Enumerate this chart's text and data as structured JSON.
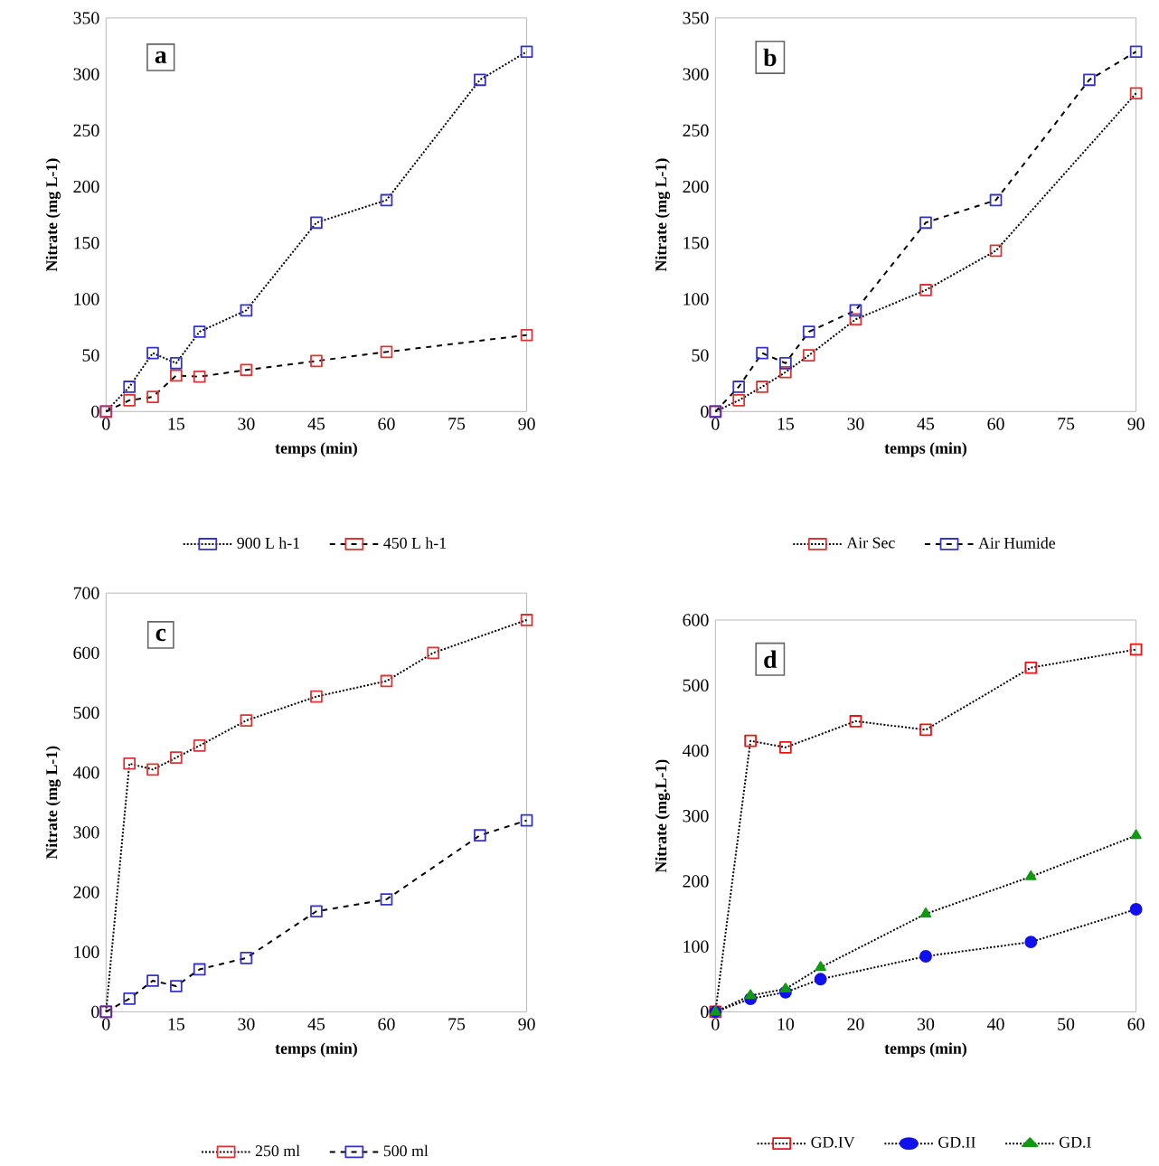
{
  "chart_data": [
    {
      "type": "line",
      "xlabel": "temps (min)",
      "ylabel": "Nitrate  (mg L-1)",
      "annotations": [
        "a"
      ],
      "xlim": [
        0,
        90
      ],
      "ylim": [
        0,
        350
      ],
      "xticks": [
        0,
        15,
        30,
        45,
        60,
        75,
        90
      ],
      "yticks": [
        0,
        50,
        100,
        150,
        200,
        250,
        300,
        350
      ],
      "legend": "bottom",
      "grid": false,
      "series": [
        {
          "name": "900 L h-1",
          "color": "#3333cc",
          "line_style": "dotted",
          "marker": "square",
          "x": [
            0,
            5,
            10,
            15,
            20,
            30,
            45,
            60,
            80,
            90
          ],
          "values": [
            0,
            22,
            52,
            43,
            71,
            90,
            168,
            188,
            295,
            320
          ]
        },
        {
          "name": "450 L h-1",
          "color": "#dd3333",
          "line_style": "dashed",
          "marker": "square",
          "x": [
            0,
            5,
            10,
            15,
            20,
            30,
            45,
            60,
            90
          ],
          "values": [
            0,
            10,
            13,
            32,
            31,
            37,
            45,
            53,
            68
          ]
        }
      ]
    },
    {
      "type": "line",
      "xlabel": "temps (min)",
      "ylabel": "Nitrate (mg L-1)",
      "annotations": [
        "b"
      ],
      "xlim": [
        0,
        90
      ],
      "ylim": [
        0,
        350
      ],
      "xticks": [
        0,
        15,
        30,
        45,
        60,
        75,
        90
      ],
      "yticks": [
        0,
        50,
        100,
        150,
        200,
        250,
        300,
        350
      ],
      "legend": "bottom",
      "grid": false,
      "series": [
        {
          "name": "Air Sec",
          "color": "#dd3333",
          "line_style": "dotted",
          "marker": "square",
          "x": [
            0,
            5,
            10,
            15,
            20,
            30,
            45,
            60,
            90
          ],
          "values": [
            0,
            10,
            22,
            35,
            50,
            82,
            108,
            143,
            283
          ]
        },
        {
          "name": "Air Humide",
          "color": "#3333cc",
          "line_style": "dashed",
          "marker": "square",
          "x": [
            0,
            5,
            10,
            15,
            20,
            30,
            45,
            60,
            80,
            90
          ],
          "values": [
            0,
            22,
            52,
            43,
            71,
            90,
            168,
            188,
            295,
            320
          ]
        }
      ]
    },
    {
      "type": "line",
      "xlabel": "temps (min)",
      "ylabel": "Nitrate (mg L-1)",
      "annotations": [
        "c"
      ],
      "xlim": [
        0,
        90
      ],
      "ylim": [
        0,
        700
      ],
      "xticks": [
        0,
        15,
        30,
        45,
        60,
        75,
        90
      ],
      "yticks": [
        0,
        100,
        200,
        300,
        400,
        500,
        600,
        700
      ],
      "legend": "bottom",
      "grid": false,
      "series": [
        {
          "name": "250 ml",
          "color": "#dd3333",
          "line_style": "dotted",
          "marker": "square",
          "x": [
            0,
            5,
            10,
            15,
            20,
            30,
            45,
            60,
            70,
            90
          ],
          "values": [
            0,
            415,
            405,
            425,
            445,
            487,
            527,
            553,
            600,
            655
          ]
        },
        {
          "name": "500 ml",
          "color": "#3333cc",
          "line_style": "dashed",
          "marker": "square",
          "x": [
            0,
            5,
            10,
            15,
            20,
            30,
            45,
            60,
            80,
            90
          ],
          "values": [
            0,
            22,
            52,
            43,
            71,
            90,
            168,
            188,
            295,
            320
          ]
        }
      ]
    },
    {
      "type": "line",
      "xlabel": "temps (min)",
      "ylabel": "Nitrate   (mg.L-1)",
      "annotations": [
        "d"
      ],
      "xlim": [
        0,
        60
      ],
      "ylim": [
        0,
        600
      ],
      "xticks": [
        0,
        10,
        20,
        30,
        40,
        50,
        60
      ],
      "yticks": [
        0,
        100,
        200,
        300,
        400,
        500,
        600
      ],
      "legend": "bottom",
      "grid": false,
      "series": [
        {
          "name": "GD.IV",
          "color": "#ee1111",
          "line_style": "dotted",
          "marker": "square",
          "x": [
            0,
            5,
            10,
            20,
            30,
            45,
            60
          ],
          "values": [
            0,
            415,
            405,
            445,
            432,
            527,
            555
          ]
        },
        {
          "name": "GD.II",
          "color": "#1111ee",
          "line_style": "dotted",
          "marker": "circle",
          "x": [
            0,
            5,
            10,
            15,
            30,
            45,
            60
          ],
          "values": [
            0,
            20,
            30,
            50,
            85,
            107,
            157
          ]
        },
        {
          "name": "GD.I",
          "color": "#119911",
          "line_style": "dotted",
          "marker": "triangle",
          "x": [
            0,
            5,
            10,
            15,
            30,
            45,
            60
          ],
          "values": [
            0,
            25,
            35,
            68,
            150,
            207,
            270
          ]
        }
      ]
    }
  ]
}
